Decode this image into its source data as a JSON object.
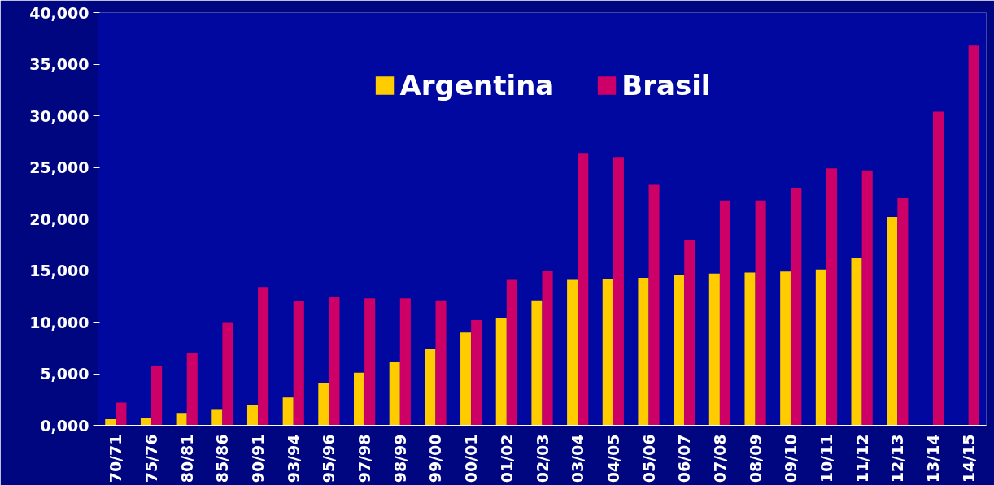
{
  "chart_data": {
    "type": "bar",
    "categories": [
      "70/71",
      "75/76",
      "80/81",
      "85/86",
      "90/91",
      "93/94",
      "95/96",
      "97/98",
      "98/99",
      "99/00",
      "00/01",
      "01/02",
      "02/03",
      "03/04",
      "04/05",
      "05/06",
      "06/07",
      "07/08",
      "08/09",
      "09/10",
      "10/11",
      "11/12",
      "12/13",
      "13/14",
      "14/15"
    ],
    "series": [
      {
        "name": "Argentina",
        "color": "#ffcc00",
        "values": [
          600,
          700,
          1200,
          1500,
          2000,
          2700,
          4100,
          5100,
          6100,
          7400,
          9000,
          10400,
          12100,
          14100,
          14200,
          14300,
          14600,
          14700,
          14800,
          14900,
          15100,
          16200,
          20200,
          null,
          null
        ]
      },
      {
        "name": "Brasil",
        "color": "#cc0066",
        "values": [
          2200,
          5700,
          7000,
          10000,
          13400,
          12000,
          12400,
          12300,
          12300,
          12100,
          10200,
          14100,
          15000,
          26400,
          26000,
          23300,
          18000,
          21800,
          21800,
          23000,
          24900,
          24700,
          22000,
          30400,
          36800
        ]
      }
    ],
    "ylim": [
      0,
      40000
    ],
    "yticks": [
      {
        "value": 0,
        "label": "0,000"
      },
      {
        "value": 5000,
        "label": "5,000"
      },
      {
        "value": 10000,
        "label": "10,000"
      },
      {
        "value": 15000,
        "label": "15,000"
      },
      {
        "value": 20000,
        "label": "20,000"
      },
      {
        "value": 25000,
        "label": "25,000"
      },
      {
        "value": 30000,
        "label": "30,000"
      },
      {
        "value": 35000,
        "label": "35,000"
      },
      {
        "value": 40000,
        "label": "40,000"
      }
    ],
    "grid": false,
    "legend": "top"
  }
}
